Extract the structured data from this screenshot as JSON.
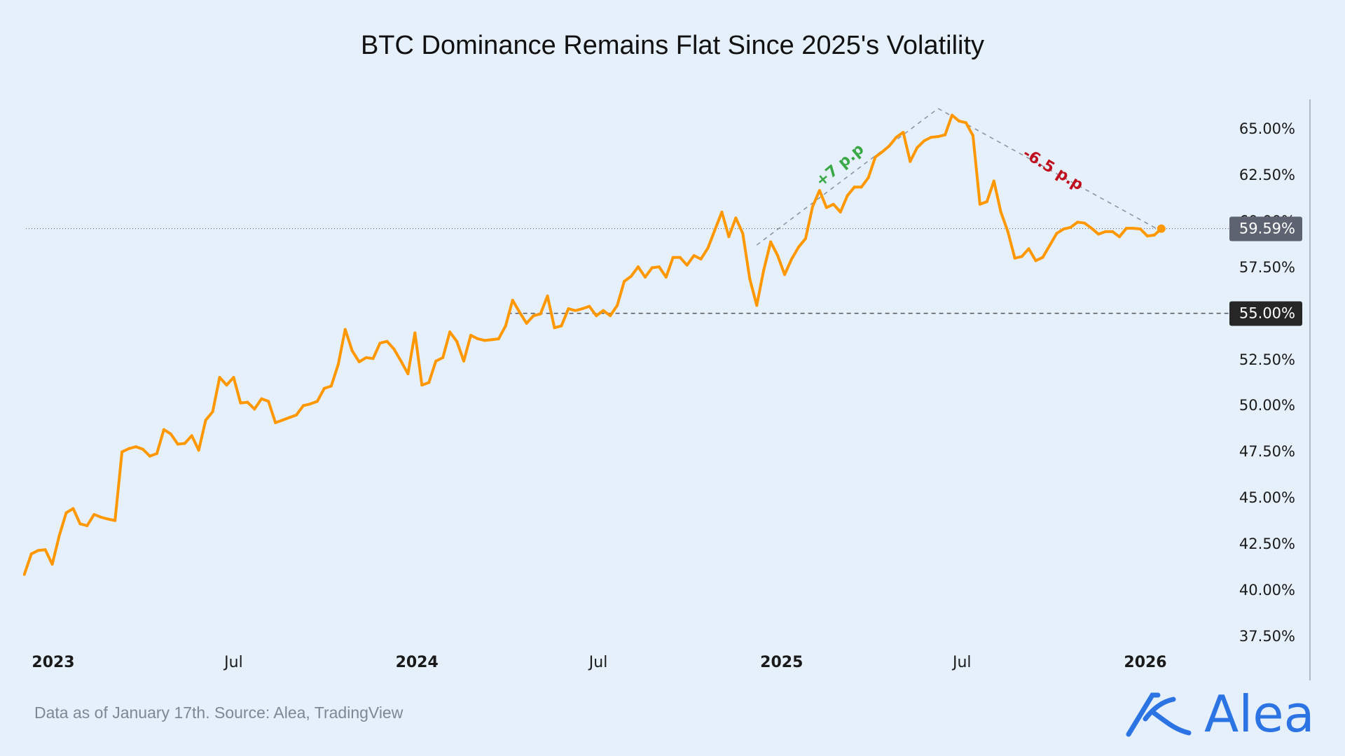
{
  "title": "BTC Dominance Remains Flat Since 2025's Volatility",
  "footer": "Data as of January 17th. Source: Alea, TradingView",
  "logo": {
    "text": "Alea",
    "color": "#2c74e3"
  },
  "colors": {
    "background": "#e6f0fb",
    "line": "#ff9800",
    "up": "#3aa847",
    "down": "#c0101f",
    "last_box": "#5d6370",
    "level_box": "#262626"
  },
  "chart_data": {
    "type": "line",
    "title": "BTC Dominance Remains Flat Since 2025's Volatility",
    "xlabel": "",
    "ylabel": "",
    "ylim": [
      36.5,
      67
    ],
    "y_axis_position": "right",
    "grid": false,
    "y_ticks": [
      "65.00%",
      "62.50%",
      "60.00%",
      "57.50%",
      "55.00%",
      "52.50%",
      "50.00%",
      "47.50%",
      "45.00%",
      "42.50%",
      "40.00%",
      "37.50%"
    ],
    "x_ticks": [
      {
        "label": "2023",
        "date": "2023-01-01"
      },
      {
        "label": "Jul",
        "date": "2023-07-01"
      },
      {
        "label": "2024",
        "date": "2024-01-01"
      },
      {
        "label": "Jul",
        "date": "2024-07-01"
      },
      {
        "label": "2025",
        "date": "2025-01-01"
      },
      {
        "label": "Jul",
        "date": "2025-07-01"
      },
      {
        "label": "2026",
        "date": "2026-01-01"
      }
    ],
    "x": [
      "2022-12-03",
      "2022-12-10",
      "2022-12-17",
      "2022-12-24",
      "2022-12-31",
      "2023-01-07",
      "2023-01-14",
      "2023-01-21",
      "2023-01-28",
      "2023-02-04",
      "2023-02-11",
      "2023-02-18",
      "2023-02-25",
      "2023-03-04",
      "2023-03-11",
      "2023-03-18",
      "2023-03-25",
      "2023-04-01",
      "2023-04-08",
      "2023-04-15",
      "2023-04-22",
      "2023-04-29",
      "2023-05-06",
      "2023-05-13",
      "2023-05-20",
      "2023-05-27",
      "2023-06-03",
      "2023-06-10",
      "2023-06-17",
      "2023-06-24",
      "2023-07-01",
      "2023-07-08",
      "2023-07-15",
      "2023-07-22",
      "2023-07-29",
      "2023-08-05",
      "2023-08-12",
      "2023-08-19",
      "2023-08-26",
      "2023-09-02",
      "2023-09-09",
      "2023-09-16",
      "2023-09-23",
      "2023-09-30",
      "2023-10-07",
      "2023-10-14",
      "2023-10-21",
      "2023-10-28",
      "2023-11-04",
      "2023-11-11",
      "2023-11-18",
      "2023-11-25",
      "2023-12-02",
      "2023-12-09",
      "2023-12-16",
      "2023-12-23",
      "2023-12-30",
      "2024-01-06",
      "2024-01-13",
      "2024-01-20",
      "2024-01-27",
      "2024-02-03",
      "2024-02-10",
      "2024-02-17",
      "2024-02-24",
      "2024-03-02",
      "2024-03-09",
      "2024-03-16",
      "2024-03-23",
      "2024-03-30",
      "2024-04-06",
      "2024-04-13",
      "2024-04-20",
      "2024-04-27",
      "2024-05-04",
      "2024-05-11",
      "2024-05-18",
      "2024-05-25",
      "2024-06-01",
      "2024-06-08",
      "2024-06-15",
      "2024-06-22",
      "2024-06-29",
      "2024-07-06",
      "2024-07-13",
      "2024-07-20",
      "2024-07-27",
      "2024-08-03",
      "2024-08-10",
      "2024-08-17",
      "2024-08-24",
      "2024-08-31",
      "2024-09-07",
      "2024-09-14",
      "2024-09-21",
      "2024-09-28",
      "2024-10-05",
      "2024-10-12",
      "2024-10-19",
      "2024-10-26",
      "2024-11-02",
      "2024-11-09",
      "2024-11-16",
      "2024-11-23",
      "2024-11-30",
      "2024-12-07",
      "2024-12-14",
      "2024-12-21",
      "2024-12-28",
      "2025-01-04",
      "2025-01-11",
      "2025-01-18",
      "2025-01-25",
      "2025-02-01",
      "2025-02-08",
      "2025-02-15",
      "2025-02-22",
      "2025-03-01",
      "2025-03-08",
      "2025-03-15",
      "2025-03-22",
      "2025-03-29",
      "2025-04-05",
      "2025-04-12",
      "2025-04-19",
      "2025-04-26",
      "2025-05-03",
      "2025-05-10",
      "2025-05-17",
      "2025-05-24",
      "2025-05-31",
      "2025-06-07",
      "2025-06-14",
      "2025-06-21",
      "2025-06-28",
      "2025-07-05",
      "2025-07-12",
      "2025-07-19",
      "2025-07-26",
      "2025-08-02",
      "2025-08-09",
      "2025-08-16",
      "2025-08-23",
      "2025-08-30",
      "2025-09-06",
      "2025-09-13",
      "2025-09-20",
      "2025-09-27",
      "2025-10-04",
      "2025-10-11",
      "2025-10-18",
      "2025-10-25",
      "2025-11-01",
      "2025-11-08",
      "2025-11-15",
      "2025-11-22",
      "2025-11-29",
      "2025-12-06",
      "2025-12-13",
      "2025-12-20",
      "2025-12-27",
      "2026-01-03",
      "2026-01-10",
      "2026-01-17"
    ],
    "series": [
      {
        "values": [
          40.85,
          41.96,
          42.15,
          42.19,
          41.4,
          42.94,
          44.19,
          44.42,
          43.59,
          43.49,
          44.1,
          43.95,
          43.85,
          43.77,
          47.49,
          47.67,
          47.77,
          47.63,
          47.26,
          47.4,
          48.7,
          48.46,
          47.91,
          47.95,
          48.37,
          47.58,
          49.21,
          49.67,
          51.53,
          51.11,
          51.53,
          50.14,
          50.18,
          49.81,
          50.37,
          50.23,
          49.07,
          49.21,
          49.35,
          49.49,
          50.0,
          50.09,
          50.23,
          50.93,
          51.06,
          52.23,
          54.13,
          52.97,
          52.37,
          52.6,
          52.55,
          53.39,
          53.48,
          53.06,
          52.41,
          51.72,
          53.94,
          51.11,
          51.25,
          52.41,
          52.6,
          53.99,
          53.48,
          52.41,
          53.81,
          53.62,
          53.53,
          53.57,
          53.62,
          54.32,
          55.71,
          55.06,
          54.46,
          54.87,
          54.97,
          55.94,
          54.22,
          54.32,
          55.25,
          55.15,
          55.25,
          55.38,
          54.87,
          55.15,
          54.87,
          55.43,
          56.73,
          57.01,
          57.52,
          56.96,
          57.47,
          57.52,
          56.96,
          58.03,
          58.03,
          57.61,
          58.13,
          57.94,
          58.54,
          59.52,
          60.49,
          59.15,
          60.17,
          59.33,
          56.87,
          55.43,
          57.34,
          58.87,
          58.13,
          57.1,
          57.94,
          58.59,
          59.05,
          60.77,
          61.66,
          60.73,
          60.91,
          60.49,
          61.38,
          61.84,
          61.84,
          62.35,
          63.47,
          63.75,
          64.07,
          64.54,
          64.81,
          63.23,
          63.98,
          64.35,
          64.54,
          64.58,
          64.67,
          65.74,
          65.42,
          65.33,
          64.63,
          60.91,
          61.05,
          62.17,
          60.49,
          59.43,
          57.99,
          58.08,
          58.5,
          57.85,
          58.03,
          58.68,
          59.33,
          59.57,
          59.66,
          59.94,
          59.89,
          59.61,
          59.29,
          59.43,
          59.43,
          59.15,
          59.61,
          59.61,
          59.57,
          59.19,
          59.24,
          59.59
        ]
      }
    ],
    "last_value": {
      "value": 59.59,
      "label": "59.59%"
    },
    "reference_level": {
      "value": 55.0,
      "label": "55.00%",
      "from": "2024-04-01"
    },
    "annotations": [
      {
        "text": "+7 p.p",
        "color": "#3aa847",
        "from": {
          "date": "2024-12-07",
          "value": 58.7
        },
        "to": {
          "date": "2025-06-07",
          "value": 66.1
        }
      },
      {
        "text": "-6.5 p.p",
        "color": "#c0101f",
        "from": {
          "date": "2025-06-07",
          "value": 66.1
        },
        "to": {
          "date": "2026-01-12",
          "value": 59.6
        }
      }
    ]
  }
}
